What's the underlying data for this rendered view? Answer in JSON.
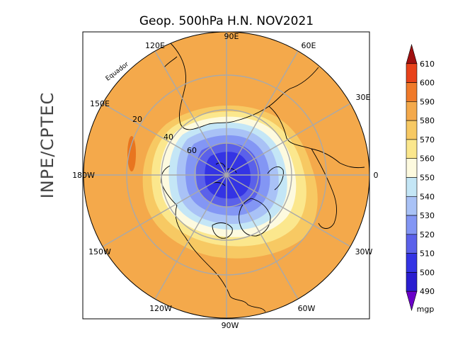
{
  "title": "Geop. 500hPa H.N. NOV2021",
  "side_label": "INPE/CPTEC",
  "map": {
    "projection": "polar-stereographic-north",
    "equator_label": "Equador",
    "longitude_labels": [
      {
        "text": "90E",
        "lon": 90
      },
      {
        "text": "60E",
        "lon": 60
      },
      {
        "text": "30E",
        "lon": 30
      },
      {
        "text": "0",
        "lon": 0
      },
      {
        "text": "30W",
        "lon": -30
      },
      {
        "text": "60W",
        "lon": -60
      },
      {
        "text": "90W",
        "lon": -90
      },
      {
        "text": "120W",
        "lon": -120
      },
      {
        "text": "150W",
        "lon": -150
      },
      {
        "text": "180W",
        "lon": 180
      },
      {
        "text": "150E",
        "lon": 150
      },
      {
        "text": "120E",
        "lon": 120
      }
    ],
    "latitude_labels": [
      {
        "text": "20",
        "lat": 20
      },
      {
        "text": "40",
        "lat": 40
      },
      {
        "text": "60",
        "lat": 60
      }
    ]
  },
  "colorbar": {
    "unit": "mgp",
    "levels": [
      "610",
      "600",
      "590",
      "580",
      "570",
      "560",
      "550",
      "540",
      "530",
      "520",
      "510",
      "500",
      "490"
    ],
    "colors": [
      "#a01010",
      "#e8421a",
      "#f07a2a",
      "#f4a94b",
      "#f7c963",
      "#fbe78d",
      "#fdfadf",
      "#c4e6f6",
      "#a9c2f6",
      "#8396f4",
      "#5b61ea",
      "#3434e4",
      "#2a1ed0",
      "#6a00c8"
    ]
  }
}
